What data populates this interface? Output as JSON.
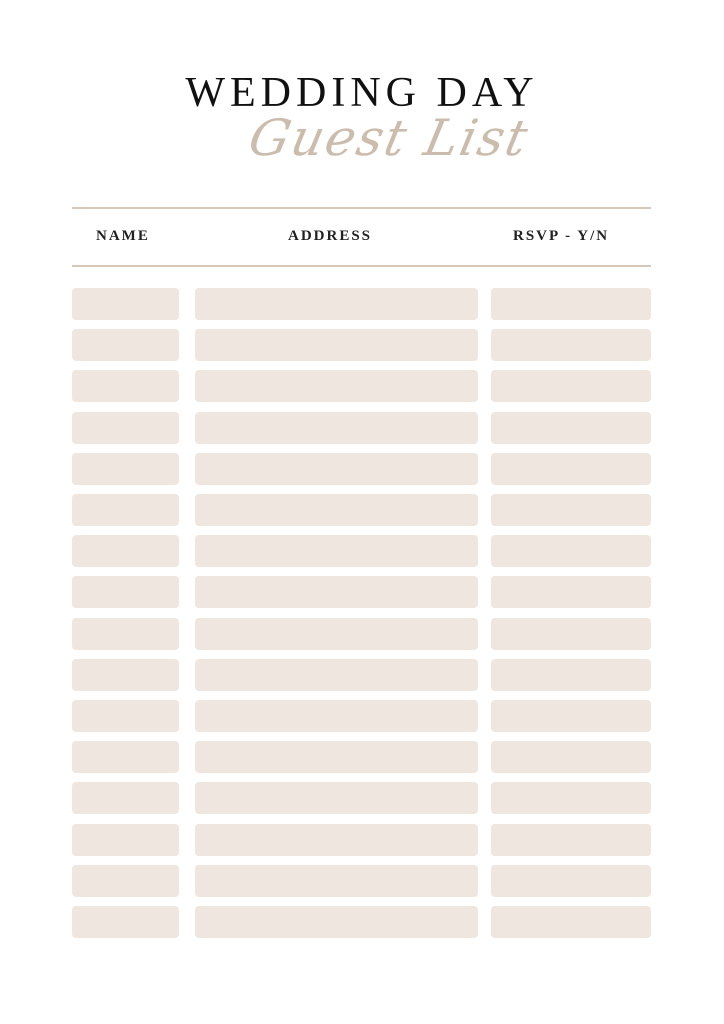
{
  "title": "WEDDING DAY",
  "subtitle": "Guest List",
  "columns": [
    "NAME",
    "ADDRESS",
    "RSVP - Y/N"
  ],
  "colors": {
    "cell_fill": "#efe6e0",
    "rule": "#d6c9bb",
    "script": "#cbbcad",
    "title": "#111111"
  },
  "rows": [
    {
      "name": "",
      "address": "",
      "rsvp": ""
    },
    {
      "name": "",
      "address": "",
      "rsvp": ""
    },
    {
      "name": "",
      "address": "",
      "rsvp": ""
    },
    {
      "name": "",
      "address": "",
      "rsvp": ""
    },
    {
      "name": "",
      "address": "",
      "rsvp": ""
    },
    {
      "name": "",
      "address": "",
      "rsvp": ""
    },
    {
      "name": "",
      "address": "",
      "rsvp": ""
    },
    {
      "name": "",
      "address": "",
      "rsvp": ""
    },
    {
      "name": "",
      "address": "",
      "rsvp": ""
    },
    {
      "name": "",
      "address": "",
      "rsvp": ""
    },
    {
      "name": "",
      "address": "",
      "rsvp": ""
    },
    {
      "name": "",
      "address": "",
      "rsvp": ""
    },
    {
      "name": "",
      "address": "",
      "rsvp": ""
    },
    {
      "name": "",
      "address": "",
      "rsvp": ""
    },
    {
      "name": "",
      "address": "",
      "rsvp": ""
    },
    {
      "name": "",
      "address": "",
      "rsvp": ""
    }
  ]
}
